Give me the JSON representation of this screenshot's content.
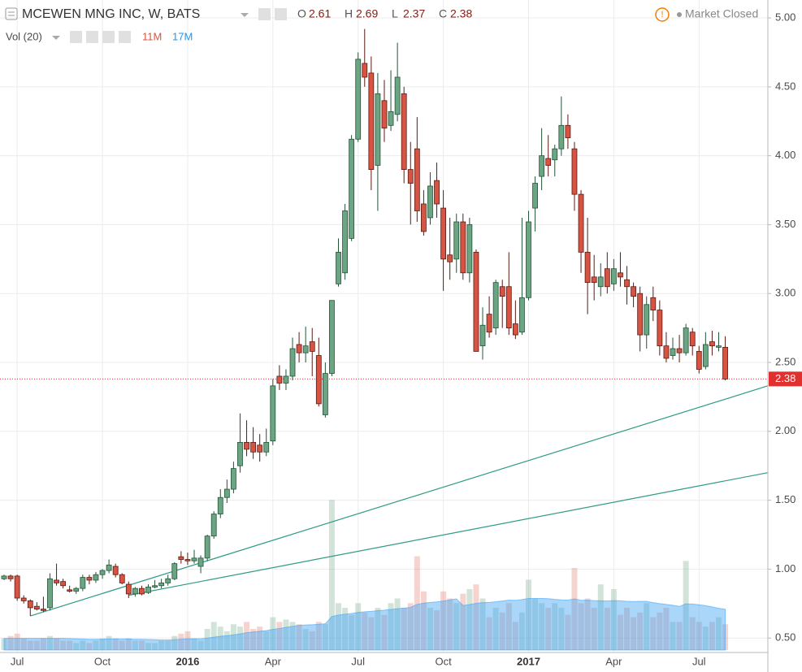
{
  "chart_data": {
    "type": "candlestick",
    "title": "MCEWEN MNG INC, W, BATS",
    "ohlc_legend": [
      {
        "label": "O",
        "value": 2.61
      },
      {
        "label": "H",
        "value": 2.69
      },
      {
        "label": "L",
        "value": 2.37
      },
      {
        "label": "C",
        "value": 2.38
      }
    ],
    "status": "Market Closed",
    "volume_legend": {
      "name": "Vol (20)",
      "values": [
        11,
        17
      ],
      "value_labels": [
        "11M",
        "17M"
      ],
      "colors": [
        "#d75442",
        "#2196f3"
      ]
    },
    "up_color": "#6ba583",
    "up_border": "#225437",
    "down_color": "#d75442",
    "down_border": "#5b1a13",
    "volume_up_color": "rgba(107,165,131,0.3)",
    "volume_down_color": "rgba(215,84,66,0.25)",
    "volume_ma_color": "#42a5f5",
    "trend_color": "#2e9b85",
    "last_price_color": "#e03030",
    "categories": [
      null,
      null,
      "Jul",
      null,
      null,
      null,
      null,
      null,
      null,
      null,
      null,
      null,
      null,
      null,
      null,
      "Oct",
      null,
      null,
      null,
      null,
      null,
      null,
      null,
      null,
      null,
      null,
      null,
      null,
      "2016",
      null,
      null,
      null,
      null,
      null,
      null,
      null,
      null,
      null,
      null,
      null,
      null,
      "Apr",
      null,
      null,
      null,
      null,
      null,
      null,
      null,
      null,
      null,
      null,
      null,
      null,
      "Jul",
      null,
      null,
      null,
      null,
      null,
      null,
      null,
      null,
      null,
      null,
      null,
      null,
      "Oct",
      null,
      null,
      null,
      null,
      null,
      null,
      null,
      null,
      null,
      null,
      null,
      null,
      "2017",
      null,
      null,
      null,
      null,
      null,
      null,
      null,
      null,
      null,
      null,
      null,
      null,
      "Apr",
      null,
      null,
      null,
      null,
      null,
      null,
      null,
      null,
      null,
      null,
      null,
      null,
      "Jul",
      null,
      null,
      null,
      null
    ],
    "open": [
      0.93,
      0.95,
      0.95,
      0.79,
      0.77,
      0.73,
      0.71,
      0.72,
      0.92,
      0.91,
      0.85,
      0.84,
      0.86,
      0.94,
      0.92,
      0.96,
      0.99,
      1.02,
      0.96,
      0.89,
      0.82,
      0.86,
      0.83,
      0.87,
      0.88,
      0.9,
      0.93,
      1.09,
      1.07,
      1.06,
      1.02,
      1.08,
      1.24,
      1.4,
      1.52,
      1.58,
      1.75,
      1.92,
      1.92,
      1.9,
      1.85,
      1.93,
      2.4,
      2.35,
      2.4,
      2.63,
      2.57,
      2.65,
      2.55,
      2.12,
      2.42,
      3.07,
      3.15,
      3.4,
      4.12,
      4.67,
      4.6,
      3.93,
      4.4,
      4.22,
      4.3,
      4.45,
      3.9,
      4.05,
      3.65,
      3.55,
      3.82,
      3.62,
      3.28,
      3.25,
      3.52,
      3.15,
      3.3,
      2.62,
      2.85,
      2.75,
      3.05,
      3.05,
      2.78,
      2.72,
      2.97,
      3.62,
      3.85,
      3.98,
      3.97,
      4.05,
      4.22,
      4.05,
      3.72,
      3.3,
      3.12,
      3.05,
      3.18,
      3.07,
      3.15,
      3.1,
      3.05,
      3.0,
      2.7,
      2.97,
      2.88,
      2.62,
      2.55,
      2.6,
      2.57,
      2.72,
      2.58,
      2.47,
      2.65,
      2.61,
      2.61
    ],
    "high": [
      0.96,
      0.96,
      0.96,
      0.81,
      0.78,
      0.76,
      0.8,
      0.97,
      1.04,
      0.93,
      0.88,
      0.87,
      0.96,
      0.96,
      0.98,
      1.0,
      1.07,
      1.04,
      0.97,
      0.91,
      0.87,
      0.88,
      0.89,
      0.92,
      0.93,
      0.96,
      1.05,
      1.13,
      1.12,
      1.14,
      1.1,
      1.25,
      1.42,
      1.58,
      1.65,
      1.78,
      2.13,
      2.08,
      2.03,
      1.98,
      2.02,
      2.38,
      2.48,
      2.45,
      2.68,
      2.72,
      2.76,
      2.75,
      2.68,
      2.5,
      2.95,
      3.4,
      3.65,
      4.15,
      4.75,
      4.92,
      4.72,
      4.6,
      4.55,
      4.62,
      4.82,
      4.5,
      4.1,
      4.28,
      3.75,
      3.88,
      3.95,
      3.75,
      3.55,
      3.58,
      3.58,
      3.55,
      3.32,
      2.9,
      2.98,
      3.1,
      3.1,
      3.3,
      2.95,
      3.55,
      3.6,
      3.85,
      4.2,
      4.15,
      4.08,
      4.43,
      4.3,
      4.1,
      3.75,
      3.55,
      3.28,
      3.22,
      3.3,
      3.25,
      3.3,
      3.2,
      3.08,
      3.05,
      2.98,
      3.05,
      2.95,
      2.72,
      2.68,
      2.7,
      2.78,
      2.75,
      2.62,
      2.72,
      2.73,
      2.72,
      2.69
    ],
    "low": [
      0.92,
      0.91,
      0.77,
      0.75,
      0.66,
      0.7,
      0.69,
      0.7,
      0.88,
      0.86,
      0.83,
      0.82,
      0.84,
      0.89,
      0.9,
      0.93,
      0.97,
      0.94,
      0.89,
      0.79,
      0.8,
      0.81,
      0.82,
      0.86,
      0.86,
      0.88,
      0.92,
      1.04,
      1.03,
      1.04,
      0.97,
      1.06,
      1.22,
      1.37,
      1.48,
      1.55,
      1.7,
      1.82,
      1.8,
      1.78,
      1.82,
      1.9,
      2.3,
      2.3,
      2.37,
      2.5,
      2.5,
      2.4,
      2.18,
      2.1,
      2.4,
      3.05,
      3.1,
      3.38,
      4.1,
      4.5,
      3.75,
      3.6,
      4.1,
      4.18,
      4.25,
      3.8,
      3.5,
      3.52,
      3.42,
      3.5,
      3.55,
      3.02,
      3.1,
      3.15,
      3.1,
      3.08,
      2.58,
      2.52,
      2.68,
      2.7,
      2.75,
      2.7,
      2.67,
      2.7,
      2.95,
      3.45,
      3.75,
      3.85,
      3.85,
      4.0,
      4.05,
      3.6,
      3.15,
      2.85,
      2.95,
      2.98,
      3.0,
      3.02,
      3.05,
      2.92,
      2.9,
      2.58,
      2.6,
      2.8,
      2.55,
      2.5,
      2.52,
      2.5,
      2.55,
      2.55,
      2.42,
      2.45,
      2.55,
      2.58,
      2.37
    ],
    "close": [
      0.95,
      0.93,
      0.79,
      0.77,
      0.72,
      0.71,
      0.7,
      0.93,
      0.9,
      0.88,
      0.84,
      0.86,
      0.94,
      0.92,
      0.96,
      0.99,
      1.03,
      0.96,
      0.9,
      0.82,
      0.86,
      0.82,
      0.87,
      0.88,
      0.9,
      0.93,
      1.04,
      1.07,
      1.06,
      1.08,
      1.08,
      1.24,
      1.4,
      1.52,
      1.58,
      1.73,
      1.92,
      1.87,
      1.85,
      1.85,
      1.92,
      2.33,
      2.35,
      2.4,
      2.6,
      2.57,
      2.62,
      2.58,
      2.2,
      2.42,
      2.95,
      3.3,
      3.6,
      4.12,
      4.7,
      4.57,
      3.9,
      4.45,
      4.2,
      4.32,
      4.57,
      3.9,
      3.8,
      3.6,
      3.45,
      3.78,
      3.65,
      3.25,
      3.23,
      3.52,
      3.15,
      3.5,
      2.58,
      2.77,
      2.72,
      3.08,
      2.98,
      2.75,
      2.7,
      2.97,
      3.52,
      3.8,
      4.0,
      3.93,
      4.05,
      4.22,
      4.13,
      3.72,
      3.3,
      3.08,
      3.08,
      3.12,
      3.05,
      3.18,
      3.12,
      3.05,
      2.98,
      2.7,
      2.92,
      2.88,
      2.62,
      2.53,
      2.6,
      2.57,
      2.75,
      2.62,
      2.45,
      2.63,
      2.62,
      2.62,
      2.38
    ],
    "volume": [
      5,
      6,
      7,
      5,
      4,
      4,
      5,
      6,
      5,
      4,
      4,
      3,
      4,
      3,
      4,
      5,
      6,
      5,
      4,
      5,
      4,
      4,
      3,
      3,
      4,
      4,
      6,
      7,
      8,
      5,
      4,
      9,
      12,
      10,
      8,
      11,
      10,
      12,
      9,
      10,
      8,
      14,
      12,
      13,
      12,
      11,
      9,
      8,
      12,
      11,
      64,
      20,
      18,
      15,
      20,
      16,
      14,
      18,
      15,
      20,
      22,
      18,
      20,
      40,
      25,
      18,
      17,
      25,
      22,
      20,
      24,
      26,
      28,
      22,
      14,
      18,
      16,
      20,
      12,
      16,
      30,
      22,
      20,
      18,
      20,
      18,
      15,
      35,
      20,
      22,
      18,
      28,
      18,
      26,
      15,
      18,
      14,
      16,
      20,
      14,
      16,
      18,
      12,
      12,
      38,
      14,
      12,
      10,
      12,
      14,
      11
    ],
    "volume_ma": [
      5,
      5,
      5,
      5,
      5,
      5,
      5,
      5,
      5,
      5,
      4.9,
      4.8,
      4.7,
      4.6,
      4.6,
      4.6,
      4.7,
      4.7,
      4.7,
      4.7,
      4.6,
      4.6,
      4.5,
      4.4,
      4.3,
      4.3,
      4.4,
      4.6,
      4.8,
      4.8,
      4.8,
      5.1,
      5.5,
      5.9,
      6.1,
      6.5,
      6.9,
      7.4,
      7.7,
      8.0,
      8.3,
      8.8,
      9.2,
      9.7,
      10.1,
      10.5,
      10.7,
      10.8,
      11.0,
      11.2,
      14.3,
      14.9,
      15.3,
      15.6,
      16.0,
      16.3,
      16.5,
      16.8,
      17.0,
      17.3,
      17.6,
      17.9,
      18.2,
      19.5,
      20.0,
      20.3,
      20.5,
      20.9,
      21.4,
      21.8,
      19.0,
      19.4,
      19.9,
      20.2,
      20.3,
      20.6,
      20.9,
      21.3,
      21.2,
      21.5,
      22.0,
      22.0,
      22.0,
      21.9,
      21.6,
      21.4,
      21.3,
      21.8,
      21.2,
      21.3,
      21.1,
      21.0,
      20.9,
      21.1,
      21.0,
      20.8,
      20.7,
      20.8,
      20.8,
      20.2,
      19.8,
      19.5,
      19.1,
      18.6,
      19.7,
      19.6,
      19.3,
      18.9,
      18.4,
      17.8,
      17.4
    ],
    "trend_lines": [
      {
        "x": [
          4,
          116.5
        ],
        "y": [
          0.66,
          2.33
        ]
      },
      {
        "x": [
          19,
          116.5
        ],
        "y": [
          0.81,
          1.7
        ]
      }
    ],
    "xlim": [
      -0.62,
      116.5
    ],
    "ylim": [
      0.395,
      5.13
    ],
    "yticks": [
      {
        "value": 0.5,
        "label": "0.50"
      },
      {
        "value": 1,
        "label": "1.00"
      },
      {
        "value": 1.5,
        "label": "1.50"
      },
      {
        "value": 2,
        "label": "2.00"
      },
      {
        "value": 2.5,
        "label": "2.50"
      },
      {
        "value": 3,
        "label": "3.00"
      },
      {
        "value": 3.5,
        "label": "3.50"
      },
      {
        "value": 4,
        "label": "4.00"
      },
      {
        "value": 4.5,
        "label": "4.50"
      },
      {
        "value": 5,
        "label": "5.00"
      }
    ],
    "y2lim": [
      0,
      80
    ],
    "grid": true
  }
}
